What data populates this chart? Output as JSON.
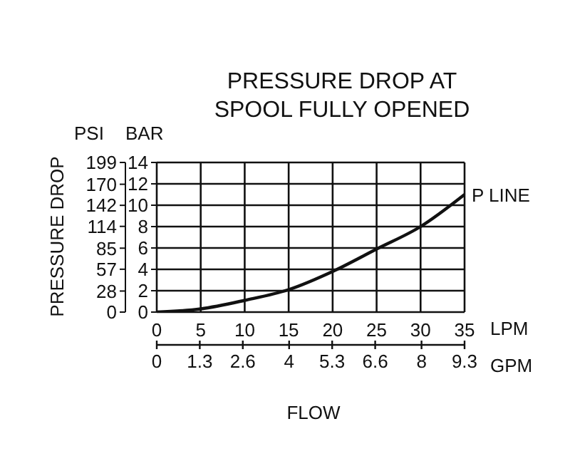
{
  "chart_data": {
    "type": "line",
    "title": "PRESSURE DROP AT\nSPOOL FULLY OPENED",
    "xlabel": "FLOW",
    "y2label": "PRESSURE DROP",
    "annotations": [
      "PSI",
      "BAR",
      "LPM",
      "GPM"
    ],
    "x": [
      0,
      5,
      10,
      15,
      20,
      25,
      30,
      35
    ],
    "series": [
      {
        "name": "P LINE",
        "color": "#111111",
        "values": [
          0,
          0.3,
          1.1,
          2.1,
          3.8,
          5.9,
          8.0,
          11
        ]
      }
    ],
    "xlim": [
      0,
      35
    ],
    "xticks": [
      0,
      5,
      10,
      15,
      20,
      25,
      30,
      35
    ],
    "x2lim": [
      0,
      9.3
    ],
    "x2ticks": [
      0,
      1.3,
      2.6,
      4,
      5.3,
      6.6,
      8,
      9.3
    ],
    "ylim": [
      0,
      14
    ],
    "yticks": [
      0,
      2,
      4,
      6,
      8,
      10,
      12,
      14
    ],
    "y2lim": [
      0,
      199
    ],
    "y2ticks": [
      0,
      28,
      57,
      85,
      114,
      142,
      170,
      199
    ],
    "grid": true,
    "legend": false,
    "marker": "none",
    "line_style": "solid"
  }
}
